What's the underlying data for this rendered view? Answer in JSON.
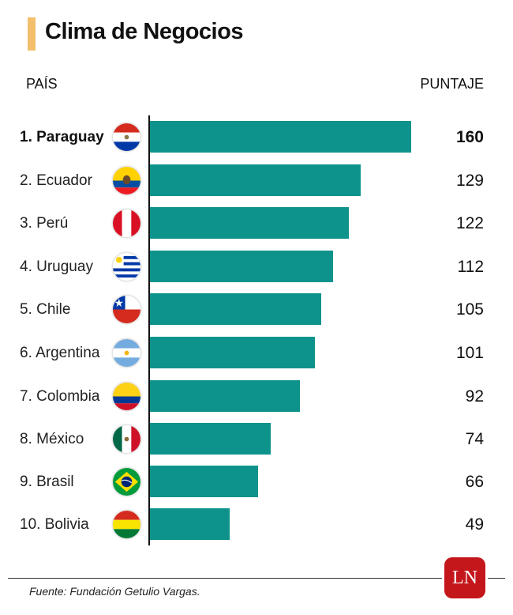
{
  "header": {
    "title": "Clima de Negocios",
    "accent_color": "#f2bf6c",
    "col_country": "PAÍS",
    "col_score": "PUNTAJE"
  },
  "rows": [
    {
      "label": "1. Paraguay",
      "value": "160",
      "flag": "paraguay-flag-icon"
    },
    {
      "label": "2. Ecuador",
      "value": "129",
      "flag": "ecuador-flag-icon"
    },
    {
      "label": "3. Perú",
      "value": "122",
      "flag": "peru-flag-icon"
    },
    {
      "label": "4. Uruguay",
      "value": "112",
      "flag": "uruguay-flag-icon"
    },
    {
      "label": "5. Chile",
      "value": "105",
      "flag": "chile-flag-icon"
    },
    {
      "label": "6. Argentina",
      "value": "101",
      "flag": "argentina-flag-icon"
    },
    {
      "label": "7. Colombia",
      "value": "92",
      "flag": "colombia-flag-icon"
    },
    {
      "label": "8. México",
      "value": "74",
      "flag": "mexico-flag-icon"
    },
    {
      "label": "9. Brasil",
      "value": "66",
      "flag": "brazil-flag-icon"
    },
    {
      "label": "10. Bolivia",
      "value": "49",
      "flag": "bolivia-flag-icon"
    }
  ],
  "footer": {
    "source": "Fuente: Fundación Getulio Vargas.",
    "logo_text": "LN",
    "logo_color": "#c4171c"
  },
  "chart_data": {
    "type": "bar",
    "orientation": "horizontal",
    "title": "Clima de Negocios",
    "xlabel": "PUNTAJE",
    "ylabel": "PAÍS",
    "categories": [
      "Paraguay",
      "Ecuador",
      "Perú",
      "Uruguay",
      "Chile",
      "Argentina",
      "Colombia",
      "México",
      "Brasil",
      "Bolivia"
    ],
    "values": [
      160,
      129,
      122,
      112,
      105,
      101,
      92,
      74,
      66,
      49
    ],
    "bar_color": "#0e938c",
    "grid": false,
    "legend": false,
    "source": "Fuente: Fundación Getulio Vargas."
  }
}
